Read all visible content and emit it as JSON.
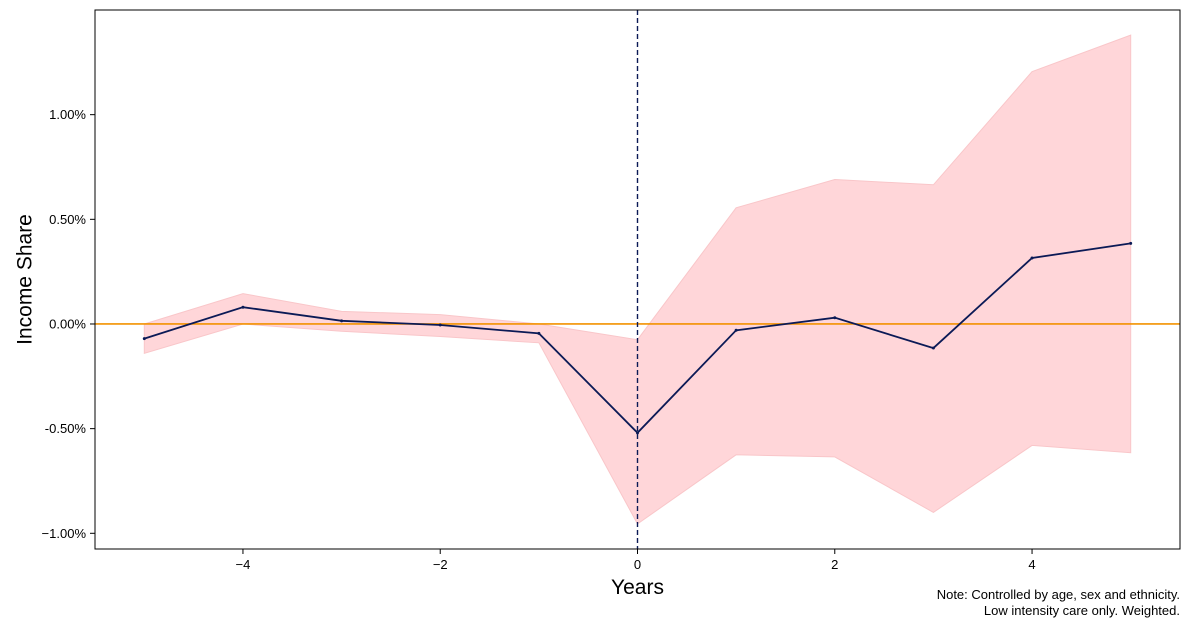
{
  "chart_data": {
    "type": "line",
    "xlabel": "Years",
    "ylabel": "Income Share",
    "xlim": [
      -5.5,
      5.5
    ],
    "ylim": [
      -1.075,
      1.5
    ],
    "x_ticks": [
      -4,
      -2,
      0,
      2,
      4
    ],
    "x_tick_labels": [
      "−4",
      "−2",
      "0",
      "2",
      "4"
    ],
    "y_ticks": [
      -1.0,
      -0.5,
      0.0,
      0.5,
      1.0
    ],
    "y_tick_labels": [
      "−1.00%",
      "-0.50%",
      "0.00%",
      "0.50%",
      "1.00%"
    ],
    "series": [
      {
        "x": [
          -5,
          -4,
          -3,
          -2,
          -1,
          0,
          1,
          2,
          3,
          4,
          5
        ],
        "values": [
          -0.07,
          0.08,
          0.015,
          -0.005,
          -0.045,
          -0.52,
          -0.03,
          0.03,
          -0.115,
          0.315,
          0.385
        ],
        "ci_lower": [
          -0.14,
          0.0,
          -0.035,
          -0.06,
          -0.09,
          -0.955,
          -0.625,
          -0.635,
          -0.9,
          -0.58,
          -0.615
        ],
        "ci_upper": [
          0.0,
          0.145,
          0.06,
          0.045,
          0.0,
          -0.075,
          0.555,
          0.69,
          0.665,
          1.205,
          1.38
        ],
        "color": "#0b1a56",
        "band_color": "#ffd6d9"
      }
    ],
    "reference_lines": {
      "horizontal": {
        "y": 0.0,
        "color": "#f39200"
      },
      "vertical": {
        "x": 0,
        "color": "#0b1a56",
        "style": "dashed"
      }
    },
    "grid": false
  },
  "note": {
    "line1": "Note: Controlled by age, sex and ethnicity.",
    "line2": "Low intensity care only. Weighted."
  }
}
